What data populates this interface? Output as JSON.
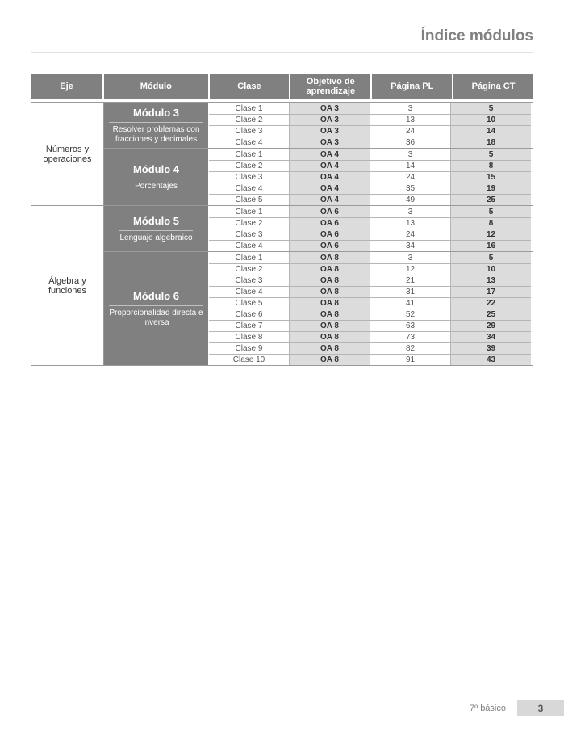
{
  "page_title": "Índice módulos",
  "footer": {
    "grade": "7º básico",
    "page": "3"
  },
  "columns": {
    "eje": "Eje",
    "modulo": "Módulo",
    "clase": "Clase",
    "oa": "Objetivo de\naprendizaje",
    "pl": "Página PL",
    "ct": "Página CT"
  },
  "colors": {
    "header_bg": "#808080",
    "header_fg": "#ffffff",
    "shade_bg": "#dcdcdc",
    "border": "#9a9a9a",
    "title_fg": "#808080"
  },
  "ejes": [
    {
      "name": "Números y operaciones",
      "modules": [
        {
          "title": "Módulo 3",
          "subtitle": "Resolver problemas con fracciones y decimales",
          "rows": [
            {
              "clase": "Clase 1",
              "oa": "OA 3",
              "pl": "3",
              "ct": "5"
            },
            {
              "clase": "Clase 2",
              "oa": "OA 3",
              "pl": "13",
              "ct": "10"
            },
            {
              "clase": "Clase 3",
              "oa": "OA 3",
              "pl": "24",
              "ct": "14"
            },
            {
              "clase": "Clase 4",
              "oa": "OA 3",
              "pl": "36",
              "ct": "18"
            }
          ]
        },
        {
          "title": "Módulo 4",
          "subtitle": "Porcentajes",
          "rows": [
            {
              "clase": "Clase 1",
              "oa": "OA 4",
              "pl": "3",
              "ct": "5"
            },
            {
              "clase": "Clase 2",
              "oa": "OA 4",
              "pl": "14",
              "ct": "8"
            },
            {
              "clase": "Clase 3",
              "oa": "OA 4",
              "pl": "24",
              "ct": "15"
            },
            {
              "clase": "Clase 4",
              "oa": "OA 4",
              "pl": "35",
              "ct": "19"
            },
            {
              "clase": "Clase 5",
              "oa": "OA 4",
              "pl": "49",
              "ct": "25"
            }
          ]
        }
      ]
    },
    {
      "name": "Álgebra y funciones",
      "modules": [
        {
          "title": "Módulo 5",
          "subtitle": "Lenguaje algebraico",
          "rows": [
            {
              "clase": "Clase 1",
              "oa": "OA 6",
              "pl": "3",
              "ct": "5"
            },
            {
              "clase": "Clase 2",
              "oa": "OA 6",
              "pl": "13",
              "ct": "8"
            },
            {
              "clase": "Clase 3",
              "oa": "OA 6",
              "pl": "24",
              "ct": "12"
            },
            {
              "clase": "Clase 4",
              "oa": "OA 6",
              "pl": "34",
              "ct": "16"
            }
          ]
        },
        {
          "title": "Módulo 6",
          "subtitle": "Proporcionalidad directa e inversa",
          "rows": [
            {
              "clase": "Clase 1",
              "oa": "OA 8",
              "pl": "3",
              "ct": "5"
            },
            {
              "clase": "Clase 2",
              "oa": "OA 8",
              "pl": "12",
              "ct": "10"
            },
            {
              "clase": "Clase 3",
              "oa": "OA 8",
              "pl": "21",
              "ct": "13"
            },
            {
              "clase": "Clase 4",
              "oa": "OA 8",
              "pl": "31",
              "ct": "17"
            },
            {
              "clase": "Clase 5",
              "oa": "OA 8",
              "pl": "41",
              "ct": "22"
            },
            {
              "clase": "Clase 6",
              "oa": "OA 8",
              "pl": "52",
              "ct": "25"
            },
            {
              "clase": "Clase 7",
              "oa": "OA 8",
              "pl": "63",
              "ct": "29"
            },
            {
              "clase": "Clase 8",
              "oa": "OA 8",
              "pl": "73",
              "ct": "34"
            },
            {
              "clase": "Clase 9",
              "oa": "OA 8",
              "pl": "82",
              "ct": "39"
            },
            {
              "clase": "Clase 10",
              "oa": "OA 8",
              "pl": "91",
              "ct": "43"
            }
          ]
        }
      ]
    }
  ]
}
